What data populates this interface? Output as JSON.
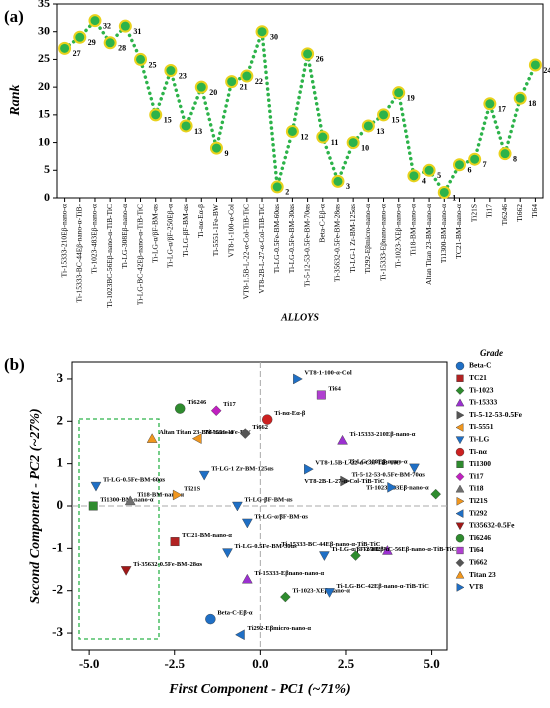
{
  "chart_data": [
    {
      "type": "line",
      "panel_label": "(a)",
      "y_label": "Rank",
      "x_label": "ALLOYS",
      "categories": [
        "Ti-15333-210Eβ-nano-α",
        "Ti-15333-BC-44Eβ-nano-α-TiB-",
        "Ti-1023-483Eβ-nano-α",
        "Ti-1023BC-56Eβ-nano-α-TiB-TiC",
        "Ti-LG-308Eβ-nano-α",
        "Ti-LG-BC-42Eβ-nano-α-TiB-TiC",
        "Ti-LG-α/βF-BM-αs",
        "Ti-LG-α/βF-250Eβ-α",
        "Ti-LG-βF-BM-αs",
        "Ti-nα-Eα-β",
        "Ti-5551-1Fe-BW",
        "VT8-1-100-α-Col",
        "VT8-1.5B-L-22-α-Col-TiB-TiC",
        "VT8-2B-L-27-α-Col-TiB-TiC",
        "Ti-LG-0.5Fe-BM-60αs",
        "Ti-LG-0.5Fe-BM-30αs",
        "Ti-5-12-53-0.5Fe-BM-70αs",
        "Beta-C-Eβ-α",
        "Ti-35632-0.5Fe-BM-28αs",
        "Ti-LG-1 Zr-BM-125αs",
        "Ti292-Eβmicro-nano-α",
        "Ti-15333-Eβnano-nano-α",
        "Ti-1023-XEβ-nano-α",
        "Ti18-BM-nano-α",
        "Altan Titan 23-BM-nano-α",
        "Ti1300-BM-nano-α",
        "TC21-BM-nano-α",
        "Ti21S",
        "Ti17",
        "Ti6246",
        "Ti662",
        "Ti64"
      ],
      "values": [
        27,
        29,
        32,
        28,
        31,
        25,
        15,
        23,
        13,
        20,
        9,
        21,
        22,
        30,
        2,
        12,
        26,
        11,
        3,
        10,
        13,
        15,
        19,
        4,
        5,
        1,
        6,
        7,
        17,
        8,
        18,
        24
      ],
      "color": "#2db34a",
      "marker_color": "#e9d21c",
      "ylim": [
        0,
        35
      ],
      "yticks": [
        0,
        5,
        10,
        15,
        20,
        25,
        30,
        35
      ],
      "grid": false
    },
    {
      "type": "scatter",
      "panel_label": "(b)",
      "x_label": "First Component - PC1 (~71%)",
      "y_label": "Second Component - PC2 (~27%)",
      "legend_title": "Grade",
      "legend": "right",
      "xlim": [
        -5.5,
        5.45
      ],
      "ylim": [
        -3.4,
        3.4
      ],
      "xticks": [
        {
          "value": -5,
          "label": "-5.0"
        },
        -2.5,
        {
          "value": 0,
          "label": "0.0"
        },
        2.5,
        {
          "value": 5,
          "label": "5.0"
        }
      ],
      "yticks": [
        -3,
        -2,
        -1,
        0,
        1,
        2,
        3
      ],
      "series": [
        {
          "name": "Beta-C",
          "color": "#1f6fc5",
          "marker": "circle",
          "x": [
            -1.46
          ],
          "y": [
            -2.67
          ],
          "labels": [
            "Beta-C-Eβ-α"
          ]
        },
        {
          "name": "TC21",
          "color": "#b22222",
          "marker": "square",
          "x": [
            -2.49
          ],
          "y": [
            -0.84
          ],
          "labels": [
            "TC21-BM-nano-α"
          ]
        },
        {
          "name": "Ti-1023",
          "color": "#2e8b2e",
          "marker": "diamond",
          "x": [
            2.78,
            0.73,
            5.12
          ],
          "y": [
            -1.17,
            -2.15,
            0.28
          ],
          "labels": [
            "Ti-1023BC-56Eβ-nano-α-TiB-TiC",
            "Ti-1023-XEβ-nano-α",
            "Ti-1023-483Eβ-nano-α"
          ]
        },
        {
          "name": "Ti-15333",
          "color": "#9b30d0",
          "marker": "triangle-up",
          "x": [
            3.71,
            -0.38,
            2.4
          ],
          "y": [
            -1.05,
            -1.73,
            1.55
          ],
          "labels": [
            "Ti-15333-BC-44Eβ-nano-α-TiB-TiC",
            "Ti-15333-Eβnano-nano-α",
            "Ti-15333-210Eβ-nano-α"
          ]
        },
        {
          "name": "Ti-5-12-53-0.5Fe",
          "color": "#555555",
          "marker": "triangle-right",
          "x": [
            2.46
          ],
          "y": [
            0.59
          ],
          "labels": [
            "Ti-5-12-53-0.5Fe-BM-70αs"
          ]
        },
        {
          "name": "Ti-5551",
          "color": "#f0961e",
          "marker": "triangle-left",
          "x": [
            -1.84
          ],
          "y": [
            1.59
          ],
          "labels": [
            "Ti-5551-1Fe-BW"
          ]
        },
        {
          "name": "Ti-LG",
          "color": "#1f6fc5",
          "marker": "triangle-down",
          "x": [
            -4.8,
            -1.64,
            -0.67,
            -0.38,
            -0.96,
            1.87,
            2.02,
            4.5
          ],
          "y": [
            0.47,
            0.73,
            0.0,
            -0.4,
            -1.1,
            -1.17,
            -2.04,
            0.9
          ],
          "labels": [
            "Ti-LG-0.5Fe-BM-60αs",
            "Ti-LG-1 Zr-BM-125αs",
            "Ti-LG-βF-BM-αs",
            "Ti-LG-α/βF-BM-αs",
            "Ti-LG-0.5Fe-BM-30αs",
            "Ti-LG-α/βF-250Eβ-α",
            "Ti-LG-BC-42Eβ-nano-α-TiB-TiC",
            "Ti-LG-308Eβ-nano-α"
          ]
        },
        {
          "name": "Ti-nα",
          "color": "#cc2020",
          "marker": "circle",
          "x": [
            0.2
          ],
          "y": [
            2.04
          ],
          "labels": [
            "Ti-nα-Eα-β"
          ]
        },
        {
          "name": "Ti1300",
          "color": "#2e8b2e",
          "marker": "square",
          "x": [
            -4.88
          ],
          "y": [
            0.0
          ],
          "labels": [
            "Ti1300-BM-nano-α"
          ]
        },
        {
          "name": "Ti17",
          "color": "#c020c0",
          "marker": "diamond",
          "x": [
            -1.29
          ],
          "y": [
            2.25
          ],
          "labels": [
            "Ti17"
          ]
        },
        {
          "name": "Ti18",
          "color": "#707070",
          "marker": "triangle-up",
          "x": [
            -3.8
          ],
          "y": [
            0.12
          ],
          "labels": [
            "Ti18-BM-nano-α"
          ]
        },
        {
          "name": "Ti21S",
          "color": "#f0961e",
          "marker": "triangle-right",
          "x": [
            -2.43
          ],
          "y": [
            0.26
          ],
          "labels": [
            "Ti21S"
          ]
        },
        {
          "name": "Ti292",
          "color": "#1f6fc5",
          "marker": "triangle-left",
          "x": [
            -0.58
          ],
          "y": [
            -3.04
          ],
          "labels": [
            "Ti292-Eβmicro-nano-α"
          ]
        },
        {
          "name": "Ti35632-0.5Fe",
          "color": "#a01818",
          "marker": "triangle-down",
          "x": [
            -3.92
          ],
          "y": [
            -1.52
          ],
          "labels": [
            "Ti-35632-0.5Fe-BM-28αs"
          ]
        },
        {
          "name": "Ti6246",
          "color": "#2e8b2e",
          "marker": "circle",
          "x": [
            -2.34
          ],
          "y": [
            2.3
          ],
          "labels": [
            "Ti6246"
          ]
        },
        {
          "name": "Ti64",
          "color": "#b040d0",
          "marker": "square",
          "x": [
            1.78
          ],
          "y": [
            2.62
          ],
          "labels": [
            "Ti64"
          ]
        },
        {
          "name": "Ti662",
          "color": "#555555",
          "marker": "diamond",
          "x": [
            -0.44
          ],
          "y": [
            1.71
          ],
          "labels": [
            "Ti662"
          ]
        },
        {
          "name": "Titan 23",
          "color": "#f0961e",
          "marker": "triangle-up",
          "x": [
            -3.16
          ],
          "y": [
            1.59
          ],
          "labels": [
            "Altan Titan 23-BM-nano-α"
          ]
        },
        {
          "name": "VT8",
          "color": "#1f6fc5",
          "marker": "triangle-right",
          "x": [
            1.08,
            1.4,
            3.83
          ],
          "y": [
            3.0,
            0.87,
            0.44
          ],
          "labels": [
            "VT8-1-100-α-Col",
            "VT8-1.5B-L-22-α-Col-TiB-TiC",
            "VT8-2B-L-27-α-Col-TiB-TiC"
          ]
        }
      ]
    }
  ]
}
